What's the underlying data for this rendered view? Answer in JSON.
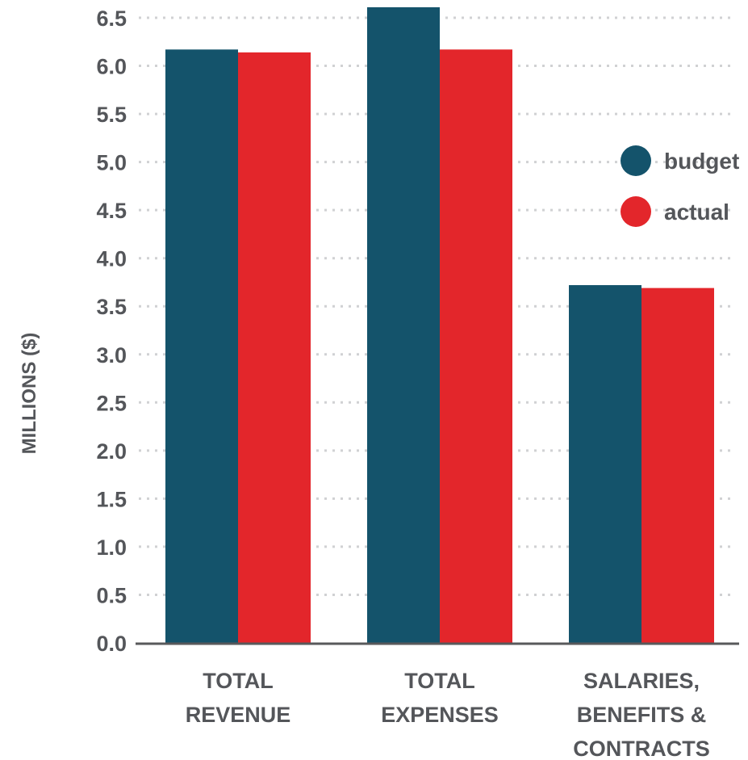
{
  "chart_data": {
    "type": "bar",
    "title": "",
    "ylabel": "MILLIONS ($)",
    "xlabel": "",
    "categories": [
      [
        "TOTAL",
        "REVENUE"
      ],
      [
        "TOTAL",
        "EXPENSES"
      ],
      [
        "SALARIES,",
        "BENEFITS &",
        "CONTRACTS"
      ]
    ],
    "series": [
      {
        "name": "budget",
        "color": "#14536b",
        "values": [
          6.17,
          6.65,
          3.72
        ]
      },
      {
        "name": "actual",
        "color": "#e3262b",
        "values": [
          6.14,
          6.17,
          3.69
        ]
      }
    ],
    "ylim": [
      0,
      6.5
    ],
    "yticks": [
      "0.0",
      "0.5",
      "1.0",
      "1.5",
      "2.0",
      "2.5",
      "3.0",
      "3.5",
      "4.0",
      "4.5",
      "5.0",
      "5.5",
      "6.0",
      "6.5"
    ],
    "grid": true,
    "legend_position": "right"
  }
}
